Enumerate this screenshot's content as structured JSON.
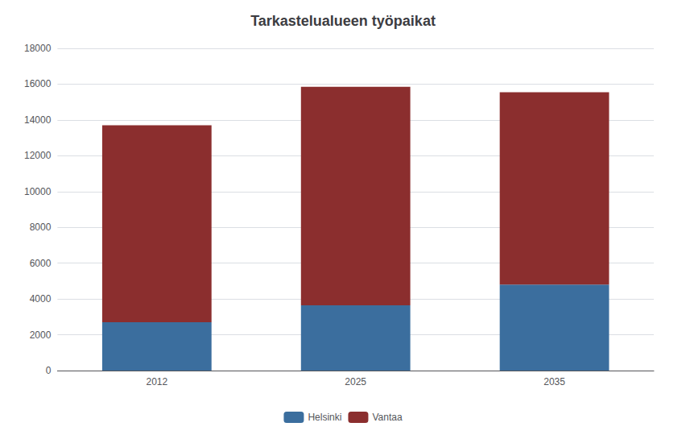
{
  "chart_data": {
    "type": "bar",
    "title": "Tarkastelualueen työpaikat",
    "categories": [
      "2012",
      "2025",
      "2035"
    ],
    "series": [
      {
        "name": "Helsinki",
        "color": "#3B6E9E",
        "values": [
          2700,
          3650,
          4800
        ]
      },
      {
        "name": "Vantaa",
        "color": "#8B2E2E",
        "values": [
          11000,
          12200,
          10750
        ]
      }
    ],
    "stacked": true,
    "ylim": [
      0,
      18000
    ],
    "yticks": [
      0,
      2000,
      4000,
      6000,
      8000,
      10000,
      12000,
      14000,
      16000,
      18000
    ],
    "grid": true,
    "legend": "bottom"
  }
}
